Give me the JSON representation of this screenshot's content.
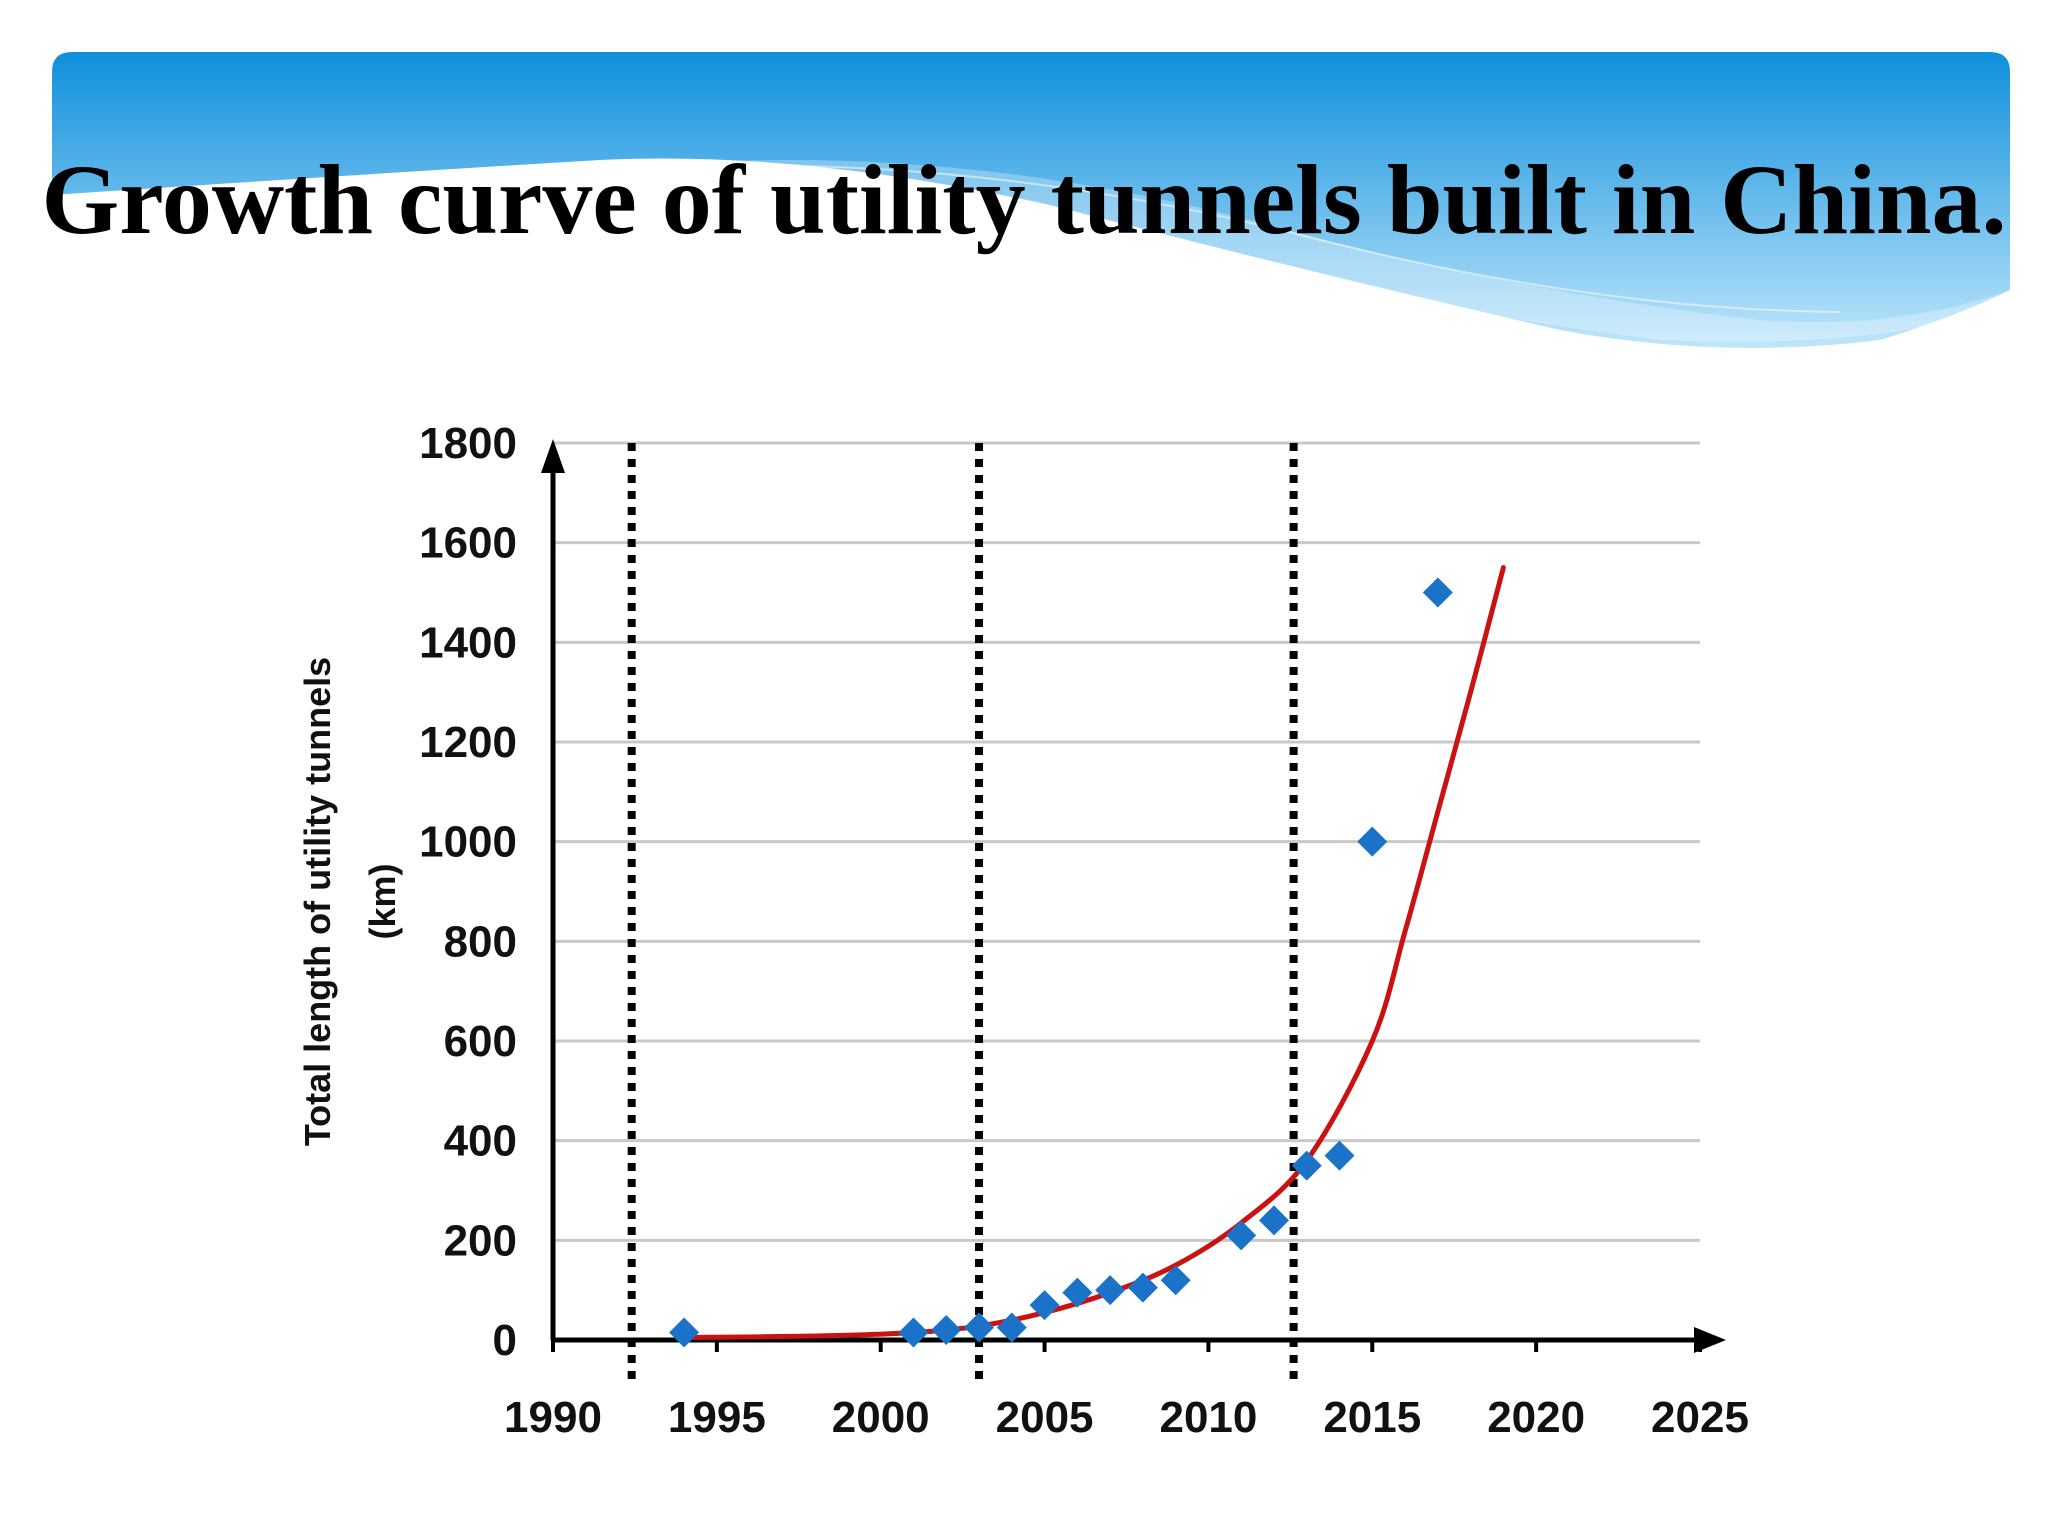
{
  "slide": {
    "title": "Growth curve of utility tunnels built in China."
  },
  "colors": {
    "banner_top": "#0e8fdc",
    "banner_bottom": "#bfe6fb",
    "points": "#1a73c8",
    "trend": "#cc1111",
    "gridline": "#c8c8c8",
    "divider": "#000000"
  },
  "chart_data": {
    "type": "scatter",
    "title": "",
    "xlabel": "",
    "ylabel": "Total length of utility tunnels",
    "ylabel_unit": "(km)",
    "xlim": [
      1990,
      2025
    ],
    "ylim": [
      0,
      1800
    ],
    "x_ticks": [
      "1990",
      "1995",
      "2000",
      "2005",
      "2010",
      "2015",
      "2020",
      "2025"
    ],
    "y_ticks": [
      "0",
      "200",
      "400",
      "600",
      "800",
      "1000",
      "1200",
      "1400",
      "1600",
      "1800"
    ],
    "grid": "horizontal",
    "marker": "diamond",
    "points": [
      {
        "x": 1994,
        "y": 15
      },
      {
        "x": 2001,
        "y": 15
      },
      {
        "x": 2002,
        "y": 20
      },
      {
        "x": 2003,
        "y": 25
      },
      {
        "x": 2004,
        "y": 25
      },
      {
        "x": 2005,
        "y": 70
      },
      {
        "x": 2006,
        "y": 95
      },
      {
        "x": 2007,
        "y": 100
      },
      {
        "x": 2008,
        "y": 105
      },
      {
        "x": 2009,
        "y": 120
      },
      {
        "x": 2011,
        "y": 210
      },
      {
        "x": 2012,
        "y": 240
      },
      {
        "x": 2013,
        "y": 350
      },
      {
        "x": 2014,
        "y": 370
      },
      {
        "x": 2015,
        "y": 1000
      },
      {
        "x": 2017,
        "y": 1500
      }
    ],
    "trend_line": {
      "type": "exponential",
      "points": [
        {
          "x": 1994,
          "y": 5
        },
        {
          "x": 1998,
          "y": 8
        },
        {
          "x": 2001,
          "y": 15
        },
        {
          "x": 2003,
          "y": 28
        },
        {
          "x": 2005,
          "y": 55
        },
        {
          "x": 2007,
          "y": 95
        },
        {
          "x": 2009,
          "y": 150
        },
        {
          "x": 2011,
          "y": 235
        },
        {
          "x": 2013,
          "y": 360
        },
        {
          "x": 2015,
          "y": 600
        },
        {
          "x": 2016,
          "y": 820
        },
        {
          "x": 2017,
          "y": 1060
        },
        {
          "x": 2018,
          "y": 1300
        },
        {
          "x": 2019,
          "y": 1550
        }
      ]
    },
    "stage_dividers": [
      1992.4,
      2003.0,
      2012.6
    ]
  }
}
